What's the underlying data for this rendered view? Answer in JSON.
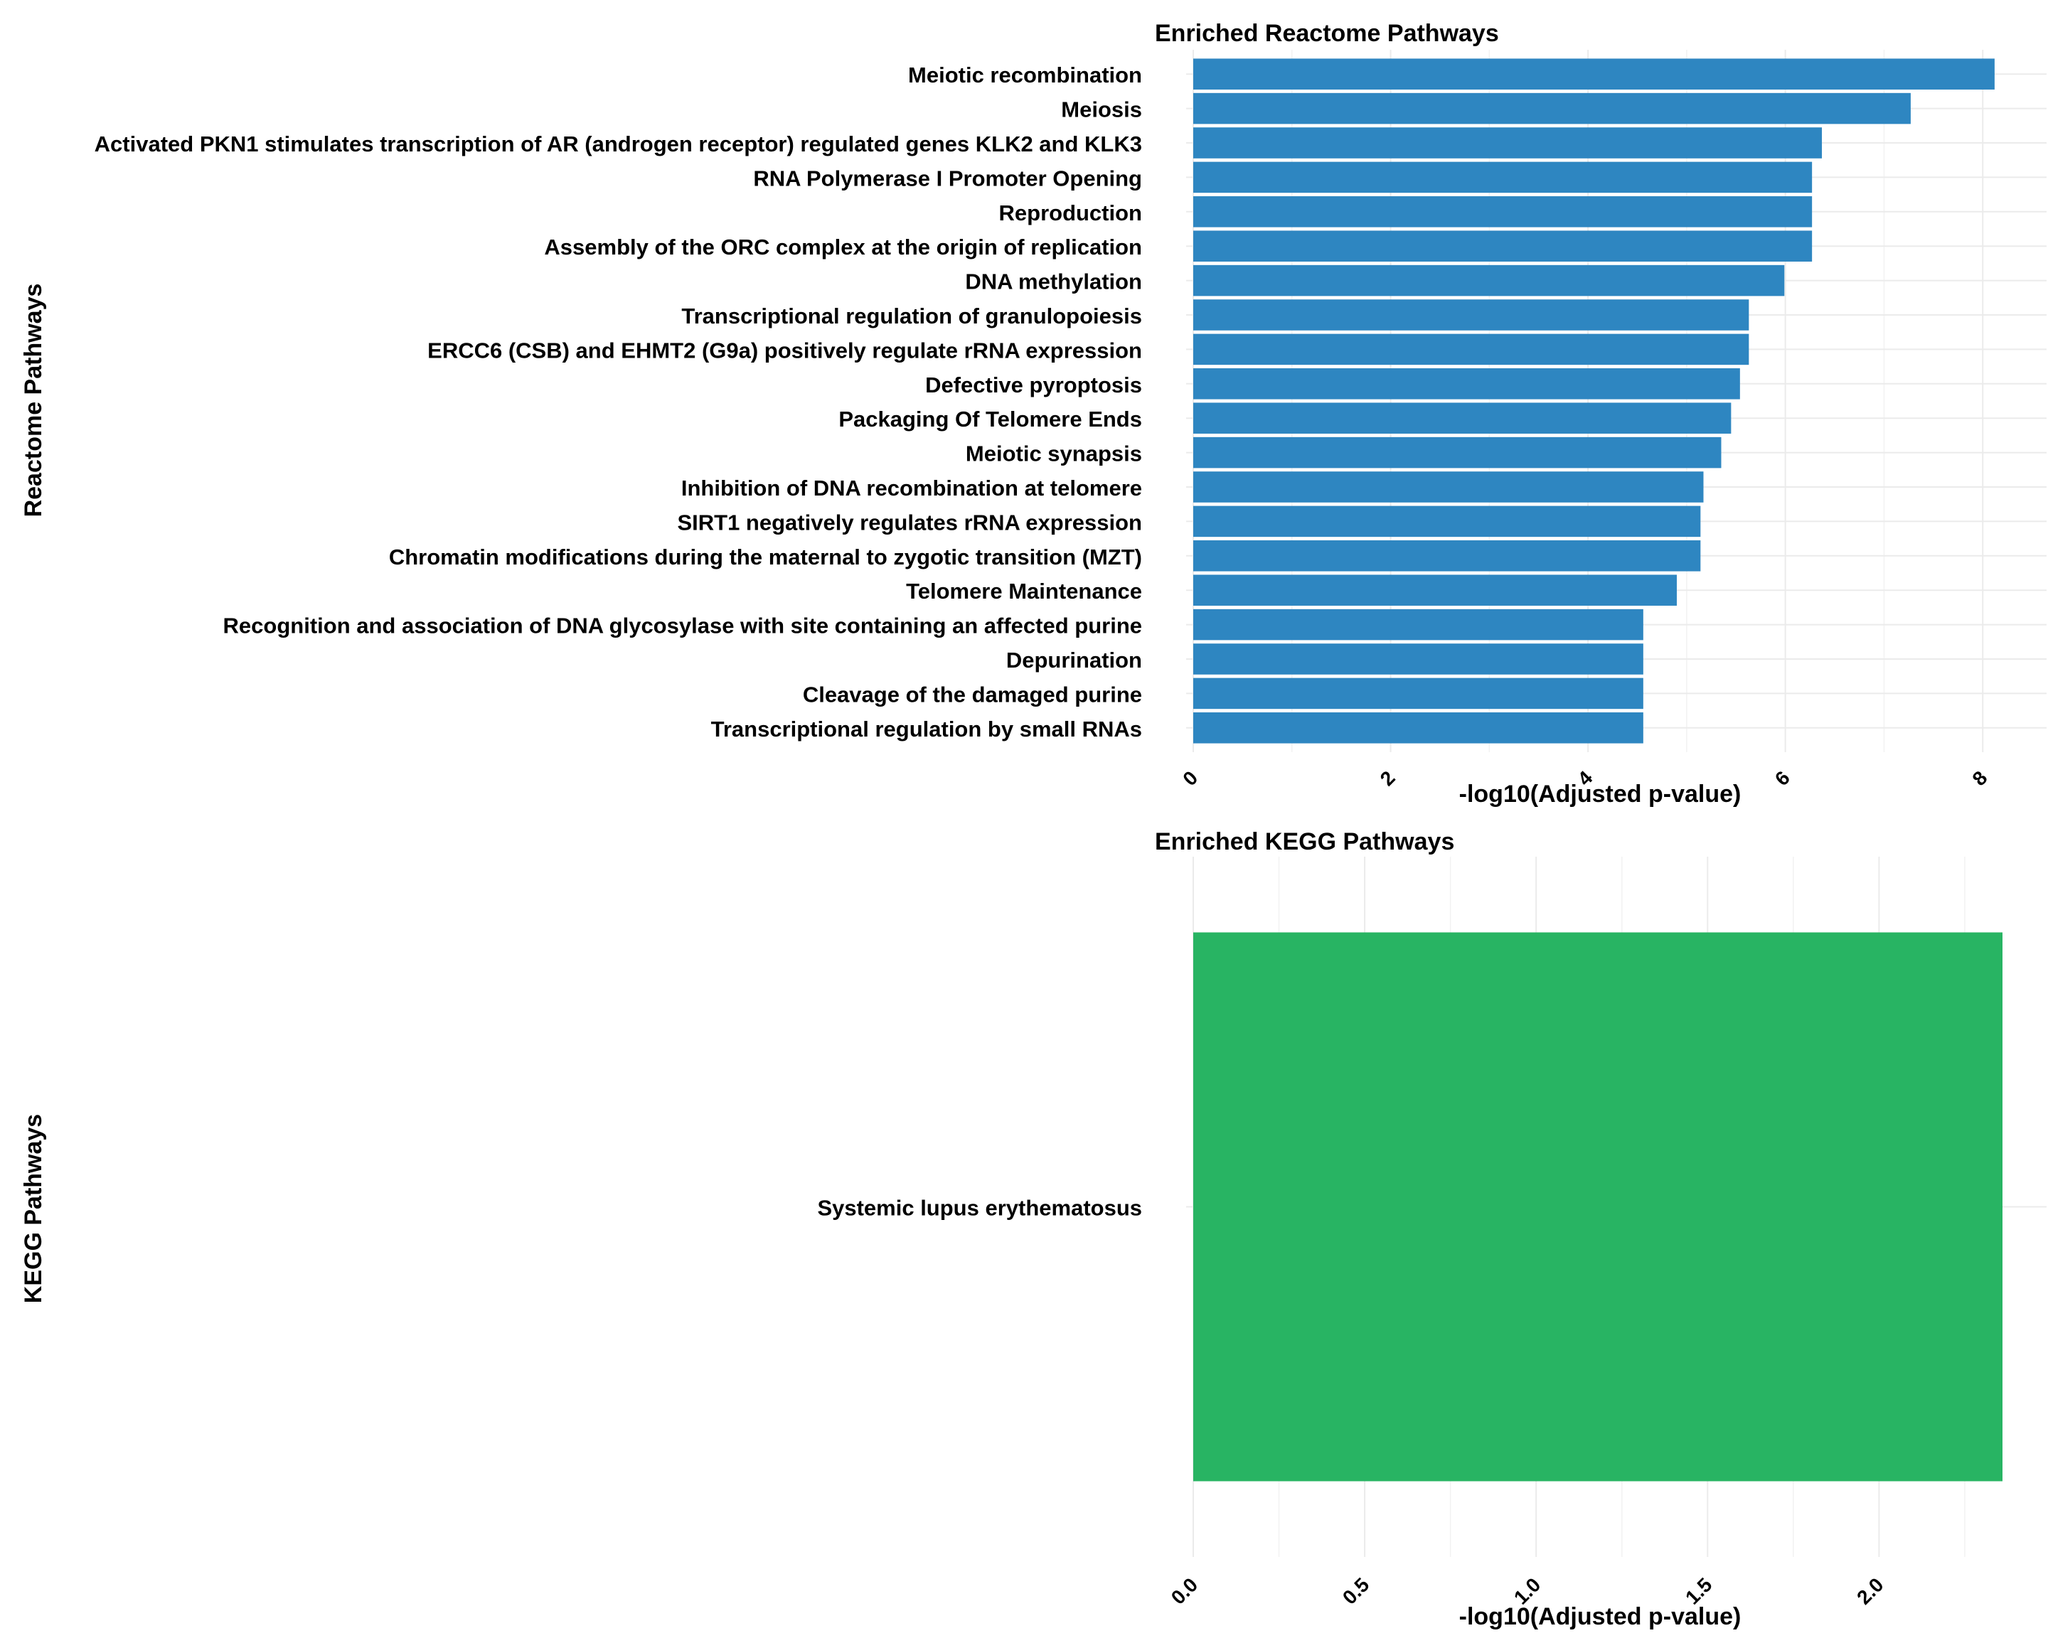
{
  "chart_data": [
    {
      "type": "bar",
      "orientation": "horizontal",
      "title": "Enriched Reactome Pathways",
      "xlabel": "-log10(Adjusted p-value)",
      "ylabel": "Reactome Pathways",
      "xlim": [
        0,
        8.2
      ],
      "xticks": [
        0,
        2,
        4,
        6,
        8
      ],
      "tick_labels": [
        "0",
        "2",
        "4",
        "6",
        "8"
      ],
      "grid": true,
      "bar_color": "#2e86c1",
      "categories": [
        "Meiotic recombination",
        "Meiosis",
        "Activated PKN1 stimulates transcription of AR (androgen receptor) regulated genes KLK2 and KLK3",
        "RNA Polymerase I Promoter Opening",
        "Reproduction",
        "Assembly of the ORC complex at the origin of replication",
        "DNA methylation",
        "Transcriptional regulation of granulopoiesis",
        "ERCC6 (CSB) and EHMT2 (G9a) positively regulate rRNA expression",
        "Defective pyroptosis",
        "Packaging Of Telomere Ends",
        "Meiotic synapsis",
        "Inhibition of DNA recombination at telomere",
        "SIRT1 negatively regulates rRNA expression",
        "Chromatin modifications during the maternal to zygotic transition (MZT)",
        "Telomere Maintenance",
        "Recognition and association of DNA glycosylase with site containing an affected purine",
        "Depurination",
        "Cleavage of the damaged purine",
        "Transcriptional regulation by small RNAs"
      ],
      "values": [
        8.12,
        7.27,
        6.37,
        6.27,
        6.27,
        6.27,
        5.99,
        5.63,
        5.63,
        5.54,
        5.45,
        5.35,
        5.17,
        5.14,
        5.14,
        4.9,
        4.56,
        4.56,
        4.56,
        4.56
      ]
    },
    {
      "type": "bar",
      "orientation": "horizontal",
      "title": "Enriched KEGG Pathways",
      "xlabel": "-log10(Adjusted p-value)",
      "ylabel": "KEGG Pathways",
      "xlim": [
        0,
        2.36
      ],
      "xticks": [
        0,
        0.5,
        1,
        1.5,
        2
      ],
      "tick_labels": [
        "0.0",
        "0.5",
        "1.0",
        "1.5",
        "2.0"
      ],
      "grid": true,
      "bar_color": "#28b463",
      "categories": [
        "Systemic lupus erythematosus"
      ],
      "values": [
        2.36
      ]
    }
  ]
}
